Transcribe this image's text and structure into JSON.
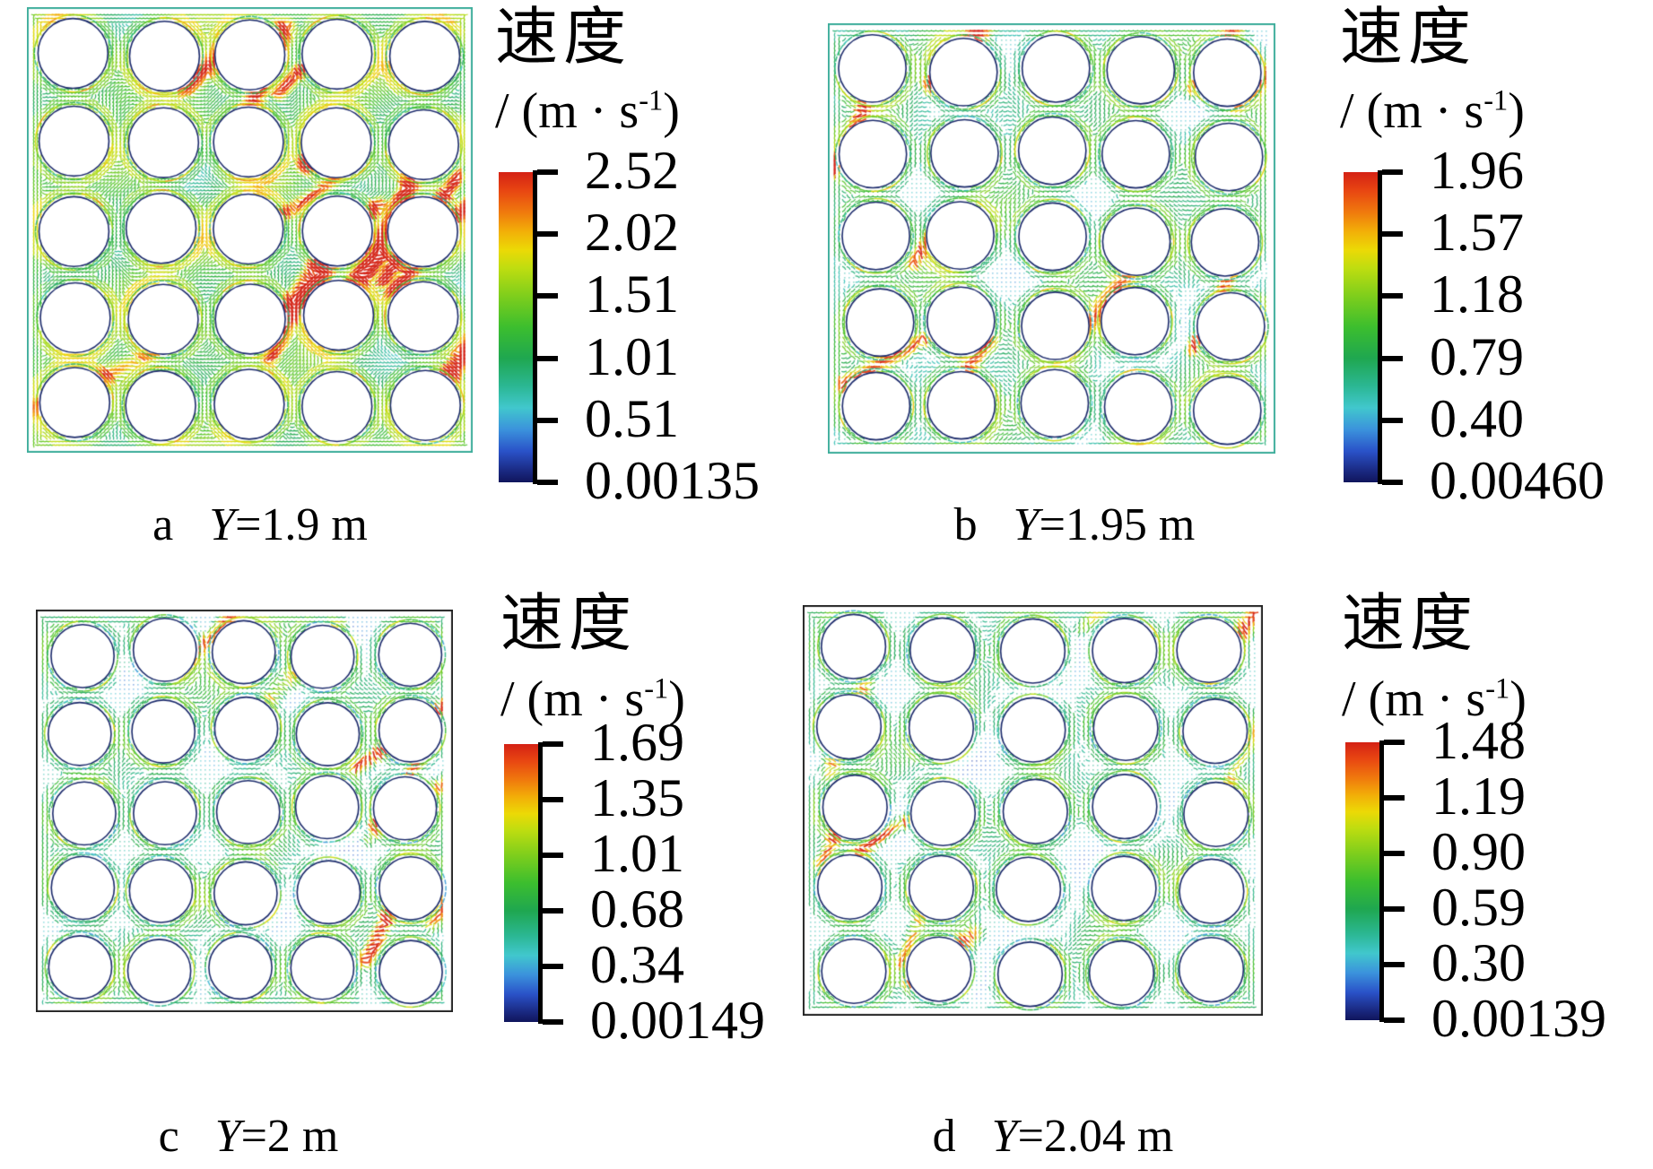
{
  "figure": {
    "background": "#ffffff",
    "text_color": "#000000",
    "colormap_note": "rainbow velocity colormap, red = max, dark blue = min",
    "tube_outline_color": "#1b2a6b",
    "colorbar_stops": [
      {
        "c": "#d42114",
        "p": 0.0
      },
      {
        "c": "#e84612",
        "p": 0.06
      },
      {
        "c": "#f07a0d",
        "p": 0.13
      },
      {
        "c": "#f2ae08",
        "p": 0.19
      },
      {
        "c": "#ecd906",
        "p": 0.25
      },
      {
        "c": "#bedd10",
        "p": 0.31
      },
      {
        "c": "#7ece1c",
        "p": 0.4
      },
      {
        "c": "#3cbe2e",
        "p": 0.5
      },
      {
        "c": "#1fa750",
        "p": 0.6
      },
      {
        "c": "#2bb793",
        "p": 0.69
      },
      {
        "c": "#41c7cd",
        "p": 0.76
      },
      {
        "c": "#3b92dc",
        "p": 0.83
      },
      {
        "c": "#2a52c8",
        "p": 0.9
      },
      {
        "c": "#1b2b85",
        "p": 0.96
      },
      {
        "c": "#10155c",
        "p": 1.0
      }
    ]
  },
  "chart_data": [
    {
      "type": "vector_field",
      "panel_letter": "a",
      "plane": "Y=1.9 m",
      "caption": {
        "letter": "a",
        "variable": "Y",
        "rest": "=1.9 m"
      },
      "legend": {
        "title": "速度",
        "unit_pre": "/ (m · s",
        "unit_sup": "-1",
        "unit_close": ")"
      },
      "ticks": [
        "2.52",
        "2.02",
        "1.51",
        "1.01",
        "0.51",
        "0.00135"
      ],
      "vmax_m_per_s": 2.52,
      "vmin_m_per_s": 0.00135,
      "tube_rows": 5,
      "tube_cols": 5,
      "field": {
        "seed": 7,
        "base": 0.46,
        "amp": 0.2,
        "bias": 0.4,
        "step": 4,
        "len": 7,
        "radius": 0.4,
        "jitter": 0.05,
        "streaks": 14,
        "sboost": 0.55,
        "dotCut": 0.12,
        "halo": 0.55,
        "border": "#3fae9c"
      }
    },
    {
      "type": "vector_field",
      "panel_letter": "b",
      "plane": "Y=1.95 m",
      "caption": {
        "letter": "b",
        "variable": "Y",
        "rest": "=1.95 m"
      },
      "legend": {
        "title": "速度",
        "unit_pre": "/ (m · s",
        "unit_sup": "-1",
        "unit_close": ")"
      },
      "ticks": [
        "1.96",
        "1.57",
        "1.18",
        "0.79",
        "0.40",
        "0.00460"
      ],
      "vmax_m_per_s": 1.96,
      "vmin_m_per_s": 0.0046,
      "tube_rows": 5,
      "tube_cols": 5,
      "field": {
        "seed": 19,
        "base": 0.33,
        "amp": 0.22,
        "bias": 0.2,
        "step": 5,
        "len": 8,
        "radius": 0.4,
        "jitter": 0.1,
        "streaks": 10,
        "sboost": 0.6,
        "dotCut": 0.26,
        "halo": 0.5,
        "border": "#3fae9c"
      }
    },
    {
      "type": "vector_field",
      "panel_letter": "c",
      "plane": "Y=2 m",
      "caption": {
        "letter": "c",
        "variable": "Y",
        "rest": "=2 m"
      },
      "legend": {
        "title": "速度",
        "unit_pre": "/ (m · s",
        "unit_sup": "-1",
        "unit_close": ")"
      },
      "ticks": [
        "1.69",
        "1.35",
        "1.01",
        "0.68",
        "0.34",
        "0.00149"
      ],
      "vmax_m_per_s": 1.69,
      "vmin_m_per_s": 0.00149,
      "tube_rows": 5,
      "tube_cols": 5,
      "field": {
        "seed": 31,
        "base": 0.28,
        "amp": 0.22,
        "bias": 0.15,
        "step": 5,
        "len": 8,
        "radius": 0.4,
        "jitter": 0.1,
        "streaks": 8,
        "sboost": 0.6,
        "dotCut": 0.3,
        "halo": 0.45,
        "border": "#222222"
      }
    },
    {
      "type": "vector_field",
      "panel_letter": "d",
      "plane": "Y=2.04 m",
      "caption": {
        "letter": "d",
        "variable": "Y",
        "rest": "=2.04 m"
      },
      "legend": {
        "title": "速度",
        "unit_pre": "/ (m · s",
        "unit_sup": "-1",
        "unit_close": ")"
      },
      "ticks": [
        "1.48",
        "1.19",
        "0.90",
        "0.59",
        "0.30",
        "0.00139"
      ],
      "vmax_m_per_s": 1.48,
      "vmin_m_per_s": 0.00139,
      "tube_rows": 5,
      "tube_cols": 5,
      "field": {
        "seed": 47,
        "base": 0.27,
        "amp": 0.22,
        "bias": 0.15,
        "step": 5,
        "len": 8,
        "radius": 0.4,
        "jitter": 0.1,
        "streaks": 8,
        "sboost": 0.6,
        "dotCut": 0.3,
        "halo": 0.45,
        "border": "#222222"
      }
    }
  ]
}
